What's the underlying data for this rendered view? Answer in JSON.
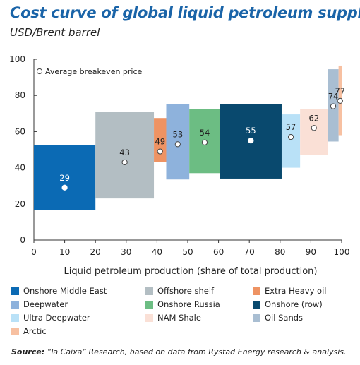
{
  "title": "Cost curve of global liquid petroleum supply",
  "subtitle": "USD/Brent barrel",
  "source": {
    "label": "Source:",
    "text": " “la Caixa” Research, based on data from Rystad Energy research & analysis."
  },
  "chart_data": {
    "type": "bar",
    "chart_kind": "floating-range bars with breakeven markers (cost curve)",
    "xlabel": "Liquid petroleum production (share of total production)",
    "ylabel": "",
    "xlim": [
      0,
      100
    ],
    "ylim": [
      0,
      100
    ],
    "x_ticks": [
      0,
      10,
      20,
      30,
      40,
      50,
      60,
      70,
      80,
      90,
      100
    ],
    "y_ticks": [
      0,
      20,
      40,
      60,
      80,
      100
    ],
    "grid": false,
    "marker_legend": "Average breakeven price",
    "legend_position": "bottom",
    "series": [
      {
        "name": "Onshore Middle East",
        "x_start": 0,
        "x_end": 20,
        "low": 16.5,
        "high": 52.5,
        "breakeven": 29,
        "color": "#0b6ab4"
      },
      {
        "name": "Offshore shelf",
        "x_start": 20,
        "x_end": 39,
        "low": 23,
        "high": 71,
        "breakeven": 43,
        "color": "#b3bec3"
      },
      {
        "name": "Extra Heavy oil",
        "x_start": 39,
        "x_end": 43,
        "low": 43,
        "high": 67.5,
        "breakeven": 49,
        "color": "#ee9363"
      },
      {
        "name": "Deepwater",
        "x_start": 43,
        "x_end": 50.5,
        "low": 33.5,
        "high": 75,
        "breakeven": 53,
        "color": "#8eb2dc"
      },
      {
        "name": "Onshore Russia",
        "x_start": 50.5,
        "x_end": 60.5,
        "low": 37,
        "high": 72.5,
        "breakeven": 54,
        "color": "#6cbd83"
      },
      {
        "name": "Onshore (row)",
        "x_start": 60.5,
        "x_end": 80.5,
        "low": 34,
        "high": 75,
        "breakeven": 55,
        "color": "#09496e"
      },
      {
        "name": "Ultra Deepwater",
        "x_start": 80.5,
        "x_end": 86.5,
        "low": 40,
        "high": 69.5,
        "breakeven": 57,
        "color": "#b9e1f7"
      },
      {
        "name": "NAM Shale",
        "x_start": 86.5,
        "x_end": 95.5,
        "low": 47,
        "high": 72.5,
        "breakeven": 62,
        "color": "#fae0d6"
      },
      {
        "name": "Oil Sands",
        "x_start": 95.5,
        "x_end": 99,
        "low": 54.5,
        "high": 94.5,
        "breakeven": 74,
        "color": "#a9bed2"
      },
      {
        "name": "Arctic",
        "x_start": 99,
        "x_end": 100,
        "low": 58,
        "high": 96.5,
        "breakeven": 77,
        "color": "#f7c0a1"
      }
    ]
  }
}
